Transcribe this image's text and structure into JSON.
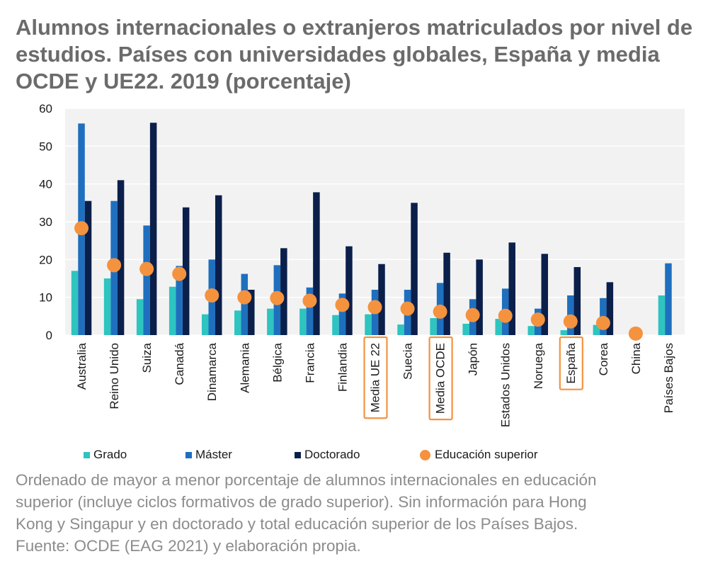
{
  "title": "Alumnos internacionales o extranjeros matriculados por nivel de estudios. Países con universidades globales, España y media OCDE y UE22. 2019 (porcentaje)",
  "colors": {
    "grado": "#2ec4c0",
    "master": "#1f6fbf",
    "doctorado": "#0b1f4b",
    "educacion_superior": "#f5923e",
    "highlight_box": "#f5923e",
    "plot_background": "#f2f2f2"
  },
  "chart_data": {
    "type": "bar",
    "categories": [
      "Australia",
      "Reino Unido",
      "Suiza",
      "Canadá",
      "Dinamarca",
      "Alemania",
      "Bélgica",
      "Francia",
      "Finlandia",
      "Media UE 22",
      "Suecia",
      "Media OCDE",
      "Japón",
      "Estados Unidos",
      "Noruega",
      "España",
      "Corea",
      "China",
      "Países Bajos"
    ],
    "highlighted_categories": [
      "Media UE 22",
      "Media OCDE",
      "España"
    ],
    "series": [
      {
        "name": "Grado",
        "kind": "bar",
        "values": [
          17,
          15,
          9.5,
          12.8,
          5.5,
          6.5,
          7,
          7,
          5.3,
          5.5,
          2.8,
          4.5,
          3,
          4.3,
          2.4,
          1.3,
          2.7,
          0,
          10.5
        ]
      },
      {
        "name": "Máster",
        "kind": "bar",
        "values": [
          56,
          35.5,
          29,
          18.3,
          20,
          16.2,
          18.5,
          12.6,
          11,
          12,
          12,
          13.8,
          9.5,
          12.3,
          7,
          10.5,
          9.8,
          0,
          19
        ]
      },
      {
        "name": "Doctorado",
        "kind": "bar",
        "values": [
          35.5,
          41,
          56.2,
          33.8,
          37,
          12,
          23,
          37.8,
          23.5,
          18.8,
          35,
          21.8,
          20,
          24.5,
          21.5,
          18,
          14,
          0,
          null
        ]
      },
      {
        "name": "Educación superior",
        "kind": "point",
        "values": [
          28.3,
          18.5,
          17.5,
          16.2,
          10.5,
          10,
          9.8,
          9.1,
          8,
          7.4,
          7,
          6.2,
          5.3,
          5.1,
          4.1,
          3.6,
          3.2,
          0.4,
          null
        ]
      }
    ],
    "ylim": [
      0,
      60
    ],
    "yticks": [
      0,
      10,
      20,
      30,
      40,
      50,
      60
    ],
    "grid": true,
    "legend_position": "bottom"
  },
  "legend": {
    "grado": "Grado",
    "master": "Máster",
    "doctorado": "Doctorado",
    "educacion_superior": "Educación superior"
  },
  "note": {
    "line1": "Ordenado de mayor a menor porcentaje de alumnos internacionales en educación",
    "line2": "superior (incluye ciclos formativos de grado superior). Sin información para Hong",
    "line3": "Kong y Singapur y en doctorado y total educación superior de los Países Bajos.",
    "line4": "Fuente: OCDE (EAG 2021) y elaboración propia."
  }
}
